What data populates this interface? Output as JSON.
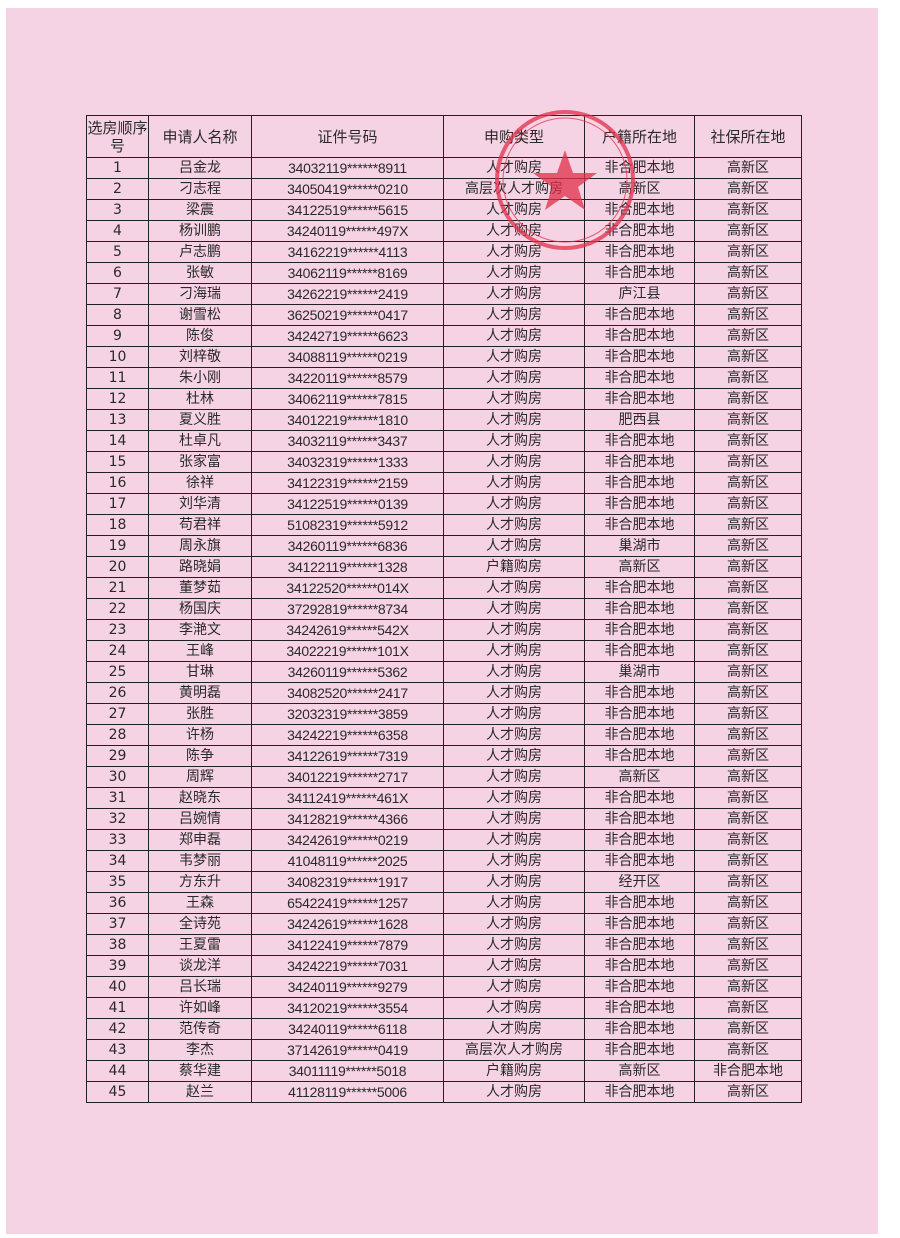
{
  "headers": [
    "选房顺序号",
    "申请人名称",
    "证件号码",
    "申购类型",
    "户籍所在地",
    "社保所在地"
  ],
  "rows": [
    [
      "1",
      "吕金龙",
      "34032119******8911",
      "人才购房",
      "非合肥本地",
      "高新区"
    ],
    [
      "2",
      "刁志程",
      "34050419******0210",
      "高层次人才购房",
      "高新区",
      "高新区"
    ],
    [
      "3",
      "梁震",
      "34122519******5615",
      "人才购房",
      "非合肥本地",
      "高新区"
    ],
    [
      "4",
      "杨训鹏",
      "34240119******497X",
      "人才购房",
      "非合肥本地",
      "高新区"
    ],
    [
      "5",
      "卢志鹏",
      "34162219******4113",
      "人才购房",
      "非合肥本地",
      "高新区"
    ],
    [
      "6",
      "张敏",
      "34062119******8169",
      "人才购房",
      "非合肥本地",
      "高新区"
    ],
    [
      "7",
      "刁海瑞",
      "34262219******2419",
      "人才购房",
      "庐江县",
      "高新区"
    ],
    [
      "8",
      "谢雪松",
      "36250219******0417",
      "人才购房",
      "非合肥本地",
      "高新区"
    ],
    [
      "9",
      "陈俊",
      "34242719******6623",
      "人才购房",
      "非合肥本地",
      "高新区"
    ],
    [
      "10",
      "刘梓敬",
      "34088119******0219",
      "人才购房",
      "非合肥本地",
      "高新区"
    ],
    [
      "11",
      "朱小刚",
      "34220119******8579",
      "人才购房",
      "非合肥本地",
      "高新区"
    ],
    [
      "12",
      "杜林",
      "34062119******7815",
      "人才购房",
      "非合肥本地",
      "高新区"
    ],
    [
      "13",
      "夏义胜",
      "34012219******1810",
      "人才购房",
      "肥西县",
      "高新区"
    ],
    [
      "14",
      "杜卓凡",
      "34032119******3437",
      "人才购房",
      "非合肥本地",
      "高新区"
    ],
    [
      "15",
      "张家富",
      "34032319******1333",
      "人才购房",
      "非合肥本地",
      "高新区"
    ],
    [
      "16",
      "徐祥",
      "34122319******2159",
      "人才购房",
      "非合肥本地",
      "高新区"
    ],
    [
      "17",
      "刘华清",
      "34122519******0139",
      "人才购房",
      "非合肥本地",
      "高新区"
    ],
    [
      "18",
      "苟君祥",
      "51082319******5912",
      "人才购房",
      "非合肥本地",
      "高新区"
    ],
    [
      "19",
      "周永旗",
      "34260119******6836",
      "人才购房",
      "巢湖市",
      "高新区"
    ],
    [
      "20",
      "路晓娟",
      "34122119******1328",
      "户籍购房",
      "高新区",
      "高新区"
    ],
    [
      "21",
      "董梦茹",
      "34122520******014X",
      "人才购房",
      "非合肥本地",
      "高新区"
    ],
    [
      "22",
      "杨国庆",
      "37292819******8734",
      "人才购房",
      "非合肥本地",
      "高新区"
    ],
    [
      "23",
      "李滟文",
      "34242619******542X",
      "人才购房",
      "非合肥本地",
      "高新区"
    ],
    [
      "24",
      "王峰",
      "34022219******101X",
      "人才购房",
      "非合肥本地",
      "高新区"
    ],
    [
      "25",
      "甘琳",
      "34260119******5362",
      "人才购房",
      "巢湖市",
      "高新区"
    ],
    [
      "26",
      "黄明磊",
      "34082520******2417",
      "人才购房",
      "非合肥本地",
      "高新区"
    ],
    [
      "27",
      "张胜",
      "32032319******3859",
      "人才购房",
      "非合肥本地",
      "高新区"
    ],
    [
      "28",
      "许杨",
      "34242219******6358",
      "人才购房",
      "非合肥本地",
      "高新区"
    ],
    [
      "29",
      "陈争",
      "34122619******7319",
      "人才购房",
      "非合肥本地",
      "高新区"
    ],
    [
      "30",
      "周辉",
      "34012219******2717",
      "人才购房",
      "高新区",
      "高新区"
    ],
    [
      "31",
      "赵晓东",
      "34112419******461X",
      "人才购房",
      "非合肥本地",
      "高新区"
    ],
    [
      "32",
      "吕婉情",
      "34128219******4366",
      "人才购房",
      "非合肥本地",
      "高新区"
    ],
    [
      "33",
      "郑申磊",
      "34242619******0219",
      "人才购房",
      "非合肥本地",
      "高新区"
    ],
    [
      "34",
      "韦梦丽",
      "41048119******2025",
      "人才购房",
      "非合肥本地",
      "高新区"
    ],
    [
      "35",
      "方东升",
      "34082319******1917",
      "人才购房",
      "经开区",
      "高新区"
    ],
    [
      "36",
      "王森",
      "65422419******1257",
      "人才购房",
      "非合肥本地",
      "高新区"
    ],
    [
      "37",
      "全诗苑",
      "34242619******1628",
      "人才购房",
      "非合肥本地",
      "高新区"
    ],
    [
      "38",
      "王夏雷",
      "34122419******7879",
      "人才购房",
      "非合肥本地",
      "高新区"
    ],
    [
      "39",
      "谈龙洋",
      "34242219******7031",
      "人才购房",
      "非合肥本地",
      "高新区"
    ],
    [
      "40",
      "吕长瑞",
      "34240119******9279",
      "人才购房",
      "非合肥本地",
      "高新区"
    ],
    [
      "41",
      "许如峰",
      "34120219******3554",
      "人才购房",
      "非合肥本地",
      "高新区"
    ],
    [
      "42",
      "范传奇",
      "34240119******6118",
      "人才购房",
      "非合肥本地",
      "高新区"
    ],
    [
      "43",
      "李杰",
      "37142619******0419",
      "高层次人才购房",
      "非合肥本地",
      "高新区"
    ],
    [
      "44",
      "蔡华建",
      "34011119******5018",
      "户籍购房",
      "高新区",
      "非合肥本地"
    ],
    [
      "45",
      "赵兰",
      "41128119******5006",
      "人才购房",
      "非合肥本地",
      "高新区"
    ]
  ],
  "colors": {
    "paper": "#f5d3e4",
    "seal": "#e0304a",
    "border": "#222222"
  }
}
